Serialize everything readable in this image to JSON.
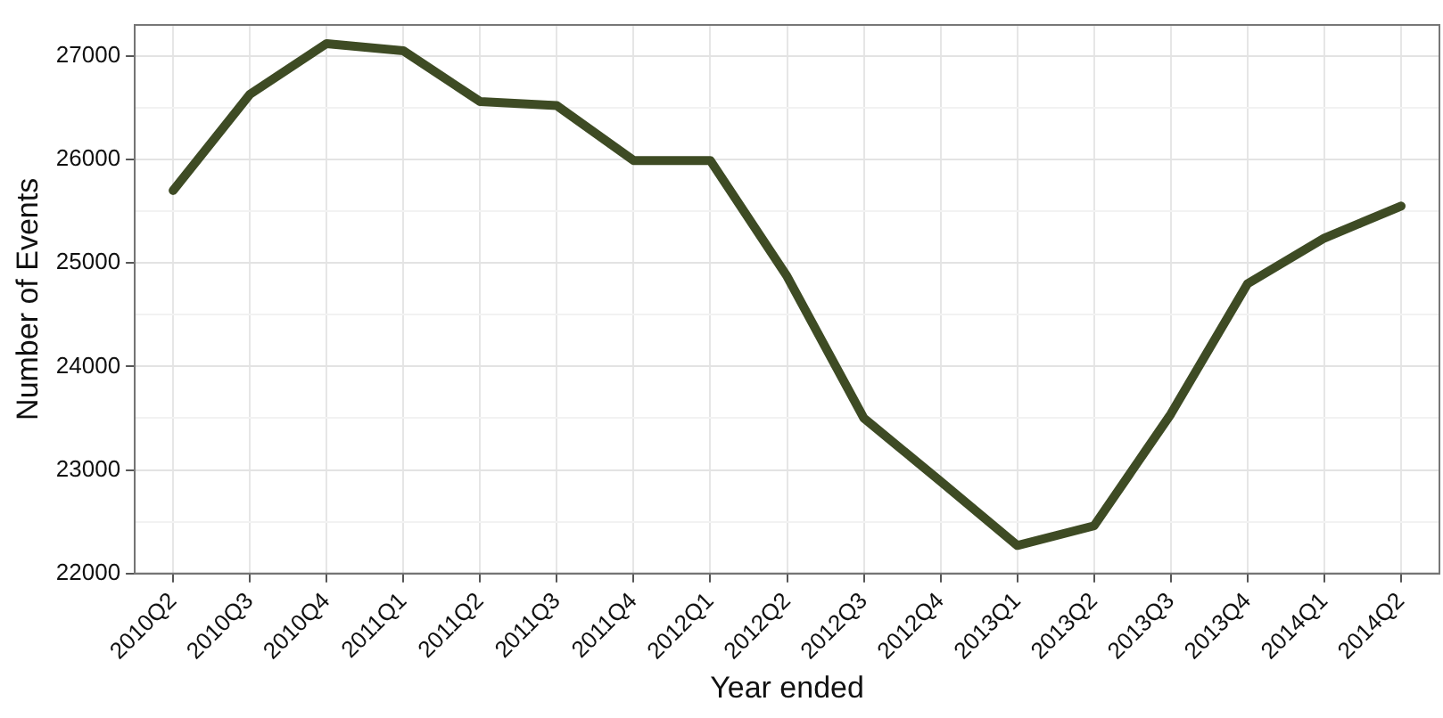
{
  "chart_data": {
    "type": "line",
    "xlabel": "Year ended",
    "ylabel": "Number of Events",
    "categories": [
      "2010Q2",
      "2010Q3",
      "2010Q4",
      "2011Q1",
      "2011Q2",
      "2011Q3",
      "2011Q4",
      "2012Q1",
      "2012Q2",
      "2012Q3",
      "2012Q4",
      "2013Q1",
      "2013Q2",
      "2013Q3",
      "2013Q4",
      "2014Q1",
      "2014Q2"
    ],
    "series": [
      {
        "color": "#3e4b24",
        "values": [
          25700,
          26630,
          27120,
          27050,
          26560,
          26520,
          25990,
          25990,
          24870,
          23500,
          22890,
          22270,
          22460,
          23540,
          24800,
          25240,
          25550
        ]
      }
    ],
    "ylim": [
      22000,
      27300
    ],
    "yticks": [
      22000,
      {
        "value": 22500,
        "label": null
      },
      23000,
      {
        "value": 23500,
        "label": null
      },
      24000,
      {
        "value": 24500,
        "label": null
      },
      25000,
      {
        "value": 25500,
        "label": null
      },
      26000,
      {
        "value": 26500,
        "label": null
      },
      27000
    ],
    "grid": true,
    "legend": false,
    "marker": "none",
    "line_style": "solid"
  }
}
